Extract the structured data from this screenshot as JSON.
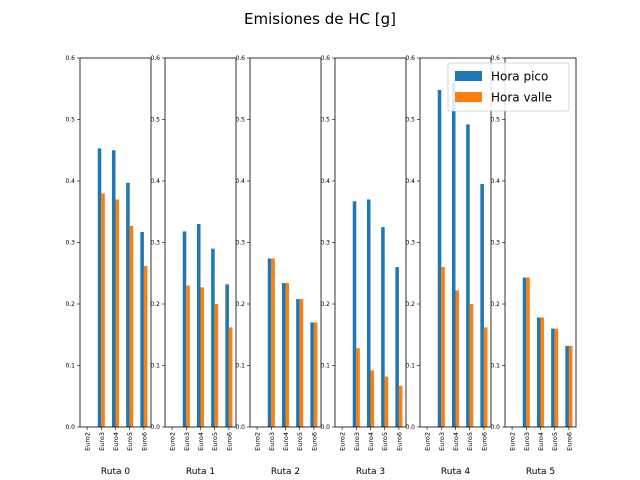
{
  "chart_data": {
    "type": "bar",
    "title": "Emisiones de HC [g]",
    "ylim": [
      0,
      0.6
    ],
    "yticks": [
      "0.0",
      "0.1",
      "0.2",
      "0.3",
      "0.4",
      "0.5",
      "0.6"
    ],
    "categories": [
      "Euro2",
      "Euro3",
      "Euro4",
      "Euro5",
      "Euro6"
    ],
    "legend": {
      "location": "top-right",
      "entries": [
        "Hora pico",
        "Hora valle"
      ]
    },
    "colors": {
      "pico": "#1f77b4",
      "valle": "#ff7f0e"
    },
    "subplots": [
      {
        "xlabel": "Ruta 0",
        "series": [
          {
            "name": "Hora pico",
            "values": [
              0,
              0.453,
              0.45,
              0.397,
              0.317
            ]
          },
          {
            "name": "Hora valle",
            "values": [
              0,
              0.38,
              0.37,
              0.327,
              0.262
            ]
          }
        ]
      },
      {
        "xlabel": "Ruta 1",
        "series": [
          {
            "name": "Hora pico",
            "values": [
              0,
              0.318,
              0.33,
              0.29,
              0.232
            ]
          },
          {
            "name": "Hora valle",
            "values": [
              0,
              0.23,
              0.227,
              0.2,
              0.162
            ]
          }
        ]
      },
      {
        "xlabel": "Ruta 2",
        "series": [
          {
            "name": "Hora pico",
            "values": [
              0,
              0.274,
              0.234,
              0.208,
              0.17
            ]
          },
          {
            "name": "Hora valle",
            "values": [
              0,
              0.274,
              0.234,
              0.208,
              0.17
            ]
          }
        ]
      },
      {
        "xlabel": "Ruta 3",
        "series": [
          {
            "name": "Hora pico",
            "values": [
              0,
              0.367,
              0.37,
              0.325,
              0.26
            ]
          },
          {
            "name": "Hora valle",
            "values": [
              0,
              0.128,
              0.092,
              0.082,
              0.067
            ]
          }
        ]
      },
      {
        "xlabel": "Ruta 4",
        "series": [
          {
            "name": "Hora pico",
            "values": [
              0,
              0.548,
              0.56,
              0.492,
              0.395
            ]
          },
          {
            "name": "Hora valle",
            "values": [
              0,
              0.26,
              0.222,
              0.2,
              0.162
            ]
          }
        ]
      },
      {
        "xlabel": "Ruta 5",
        "series": [
          {
            "name": "Hora pico",
            "values": [
              0,
              0.243,
              0.178,
              0.16,
              0.132
            ]
          },
          {
            "name": "Hora valle",
            "values": [
              0,
              0.243,
              0.178,
              0.16,
              0.132
            ]
          }
        ]
      }
    ]
  }
}
